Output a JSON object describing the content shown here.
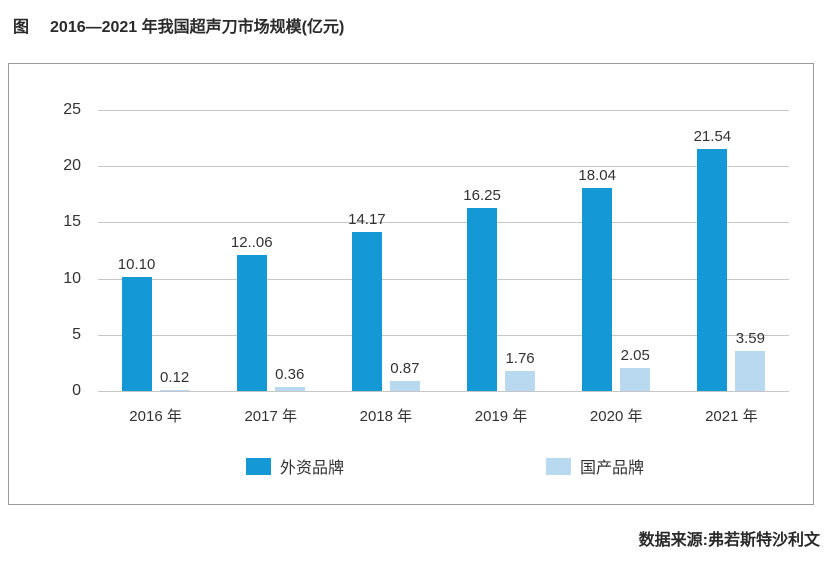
{
  "title": {
    "prefix": "图",
    "text": "2016—2021 年我国超声刀市场规模(亿元)"
  },
  "source": "数据来源:弗若斯特沙利文",
  "colors": {
    "foreign_brand": "#1598d6",
    "domestic_brand": "#b9d9f1",
    "gridline": "#c6c6c6",
    "box_border": "#9b9b9b"
  },
  "chart_data": {
    "type": "bar",
    "title": "2016—2021 年我国超声刀市场规模(亿元)",
    "categories": [
      "2016 年",
      "2017 年",
      "2018 年",
      "2019 年",
      "2020 年",
      "2021 年"
    ],
    "series": [
      {
        "name": "外资品牌",
        "values": [
          10.1,
          12.06,
          14.17,
          16.25,
          18.04,
          21.54
        ],
        "labels": [
          "10.10",
          "12..06",
          "14.17",
          "16.25",
          "18.04",
          "21.54"
        ],
        "color": "#1598d6"
      },
      {
        "name": "国产品牌",
        "values": [
          0.12,
          0.36,
          0.87,
          1.76,
          2.05,
          3.59
        ],
        "labels": [
          "0.12",
          "0.36",
          "0.87",
          "1.76",
          "2.05",
          "3.59"
        ],
        "color": "#b9d9f1"
      }
    ],
    "xlabel": "",
    "ylabel": "",
    "ylim": [
      0,
      25
    ],
    "yticks": [
      0,
      5,
      10,
      15,
      20,
      25
    ],
    "grid": true,
    "legend_position": "bottom"
  }
}
